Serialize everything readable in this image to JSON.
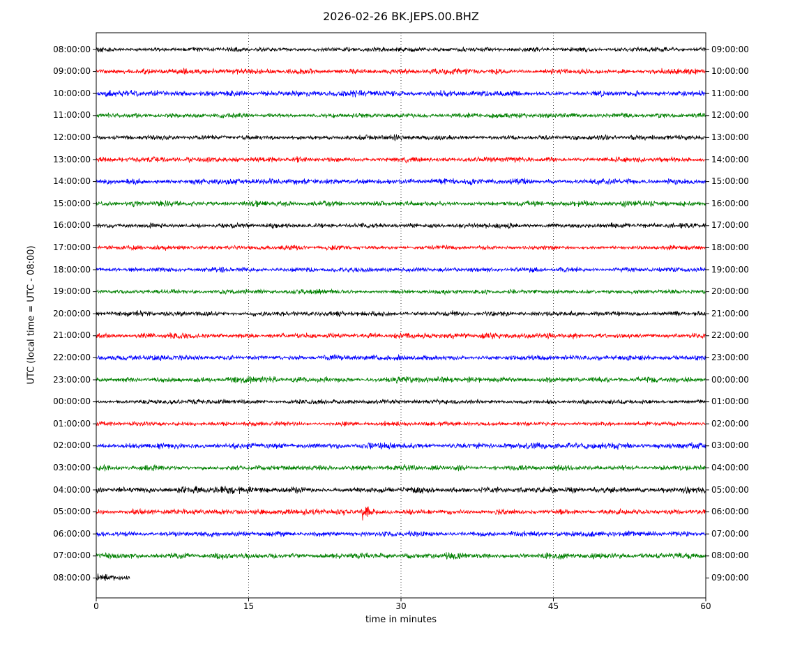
{
  "figure": {
    "title": "2026-02-26 BK.JEPS.00.BHZ",
    "xlabel": "time in minutes",
    "ylabel": "UTC (local time = UTC - 08:00)"
  },
  "chart_data": {
    "type": "line",
    "subtype": "seismogram-dayplot",
    "title": "2026-02-26 BK.JEPS.00.BHZ",
    "xlabel": "time in minutes",
    "ylabel": "UTC (local time = UTC - 08:00)",
    "xlim": [
      0,
      60
    ],
    "x_ticks": [
      0,
      15,
      30,
      45,
      60
    ],
    "x_gridlines": [
      15,
      30,
      45
    ],
    "minutes_per_row": 60,
    "grid": "dotted-vertical",
    "trace_colors": {
      "black": "#000000",
      "red": "#ff0000",
      "blue": "#0000ff",
      "green": "#008000"
    },
    "event": {
      "row_left_label": "05:00:00",
      "row_right_label": "06:00:00",
      "minute": 26,
      "color": "red",
      "description": "high-amplitude burst with rapid onset and exponential decay"
    },
    "rows": [
      {
        "left": "08:00:00",
        "right": "09:00:00",
        "color": "black",
        "duration_minutes": 60
      },
      {
        "left": "09:00:00",
        "right": "10:00:00",
        "color": "red",
        "duration_minutes": 60
      },
      {
        "left": "10:00:00",
        "right": "11:00:00",
        "color": "blue",
        "duration_minutes": 60
      },
      {
        "left": "11:00:00",
        "right": "12:00:00",
        "color": "green",
        "duration_minutes": 60
      },
      {
        "left": "12:00:00",
        "right": "13:00:00",
        "color": "black",
        "duration_minutes": 60
      },
      {
        "left": "13:00:00",
        "right": "14:00:00",
        "color": "red",
        "duration_minutes": 60
      },
      {
        "left": "14:00:00",
        "right": "15:00:00",
        "color": "blue",
        "duration_minutes": 60
      },
      {
        "left": "15:00:00",
        "right": "16:00:00",
        "color": "green",
        "duration_minutes": 60
      },
      {
        "left": "16:00:00",
        "right": "17:00:00",
        "color": "black",
        "duration_minutes": 60
      },
      {
        "left": "17:00:00",
        "right": "18:00:00",
        "color": "red",
        "duration_minutes": 60
      },
      {
        "left": "18:00:00",
        "right": "19:00:00",
        "color": "blue",
        "duration_minutes": 60
      },
      {
        "left": "19:00:00",
        "right": "20:00:00",
        "color": "green",
        "duration_minutes": 60
      },
      {
        "left": "20:00:00",
        "right": "21:00:00",
        "color": "black",
        "duration_minutes": 60
      },
      {
        "left": "21:00:00",
        "right": "22:00:00",
        "color": "red",
        "duration_minutes": 60
      },
      {
        "left": "22:00:00",
        "right": "23:00:00",
        "color": "blue",
        "duration_minutes": 60
      },
      {
        "left": "23:00:00",
        "right": "00:00:00",
        "color": "green",
        "duration_minutes": 60
      },
      {
        "left": "00:00:00",
        "right": "01:00:00",
        "color": "black",
        "duration_minutes": 60
      },
      {
        "left": "01:00:00",
        "right": "02:00:00",
        "color": "red",
        "duration_minutes": 60
      },
      {
        "left": "02:00:00",
        "right": "03:00:00",
        "color": "blue",
        "duration_minutes": 60
      },
      {
        "left": "03:00:00",
        "right": "04:00:00",
        "color": "green",
        "duration_minutes": 60
      },
      {
        "left": "04:00:00",
        "right": "05:00:00",
        "color": "black",
        "duration_minutes": 60
      },
      {
        "left": "05:00:00",
        "right": "06:00:00",
        "color": "red",
        "duration_minutes": 60,
        "event_minute": 26
      },
      {
        "left": "06:00:00",
        "right": "07:00:00",
        "color": "blue",
        "duration_minutes": 60
      },
      {
        "left": "07:00:00",
        "right": "08:00:00",
        "color": "green",
        "duration_minutes": 60
      },
      {
        "left": "08:00:00",
        "right": "09:00:00",
        "color": "black",
        "duration_minutes": 3.3,
        "start_boost": true
      }
    ]
  }
}
